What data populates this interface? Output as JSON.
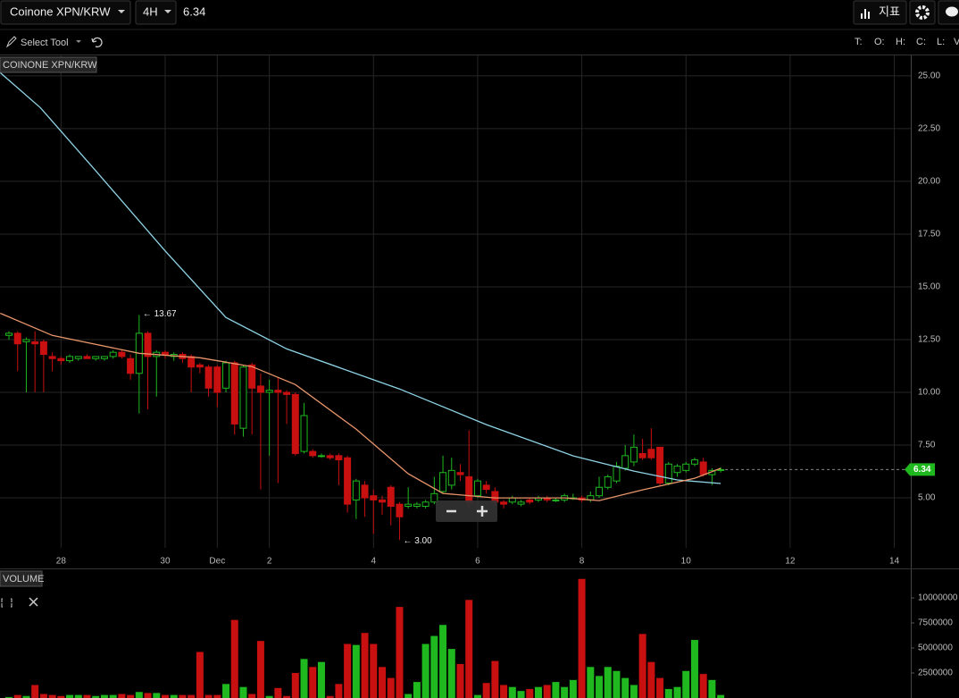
{
  "toolbar": {
    "symbol": "Coinone XPN/KRW",
    "interval": "4H",
    "price": "6.34",
    "indicators": "지표",
    "tool": "Select Tool",
    "ohlcv_labels": [
      "T:",
      "O:",
      "H:",
      "C:",
      "L:",
      "V"
    ]
  },
  "chart_data": {
    "type": "candlestick",
    "title": "COINONE XPN/KRW",
    "volume_title": "VOLUME",
    "up_color": "#1fb81f",
    "down_color": "#c81010",
    "grid": true,
    "x": [
      0,
      1,
      2,
      3,
      4,
      5,
      6,
      7,
      8,
      9,
      10,
      11,
      12,
      13,
      14,
      15,
      16,
      17,
      18,
      19,
      20,
      21,
      22,
      23,
      24,
      25,
      26,
      27,
      28,
      29,
      30,
      31,
      32,
      33,
      34,
      35,
      36,
      37,
      38,
      39,
      40,
      41,
      42,
      43,
      44,
      45,
      46,
      47,
      48,
      49,
      50,
      51,
      52,
      53,
      54,
      55,
      56,
      57,
      58,
      59,
      60,
      61,
      62,
      63,
      64,
      65,
      66,
      67,
      68,
      69,
      70,
      71,
      72,
      73,
      74,
      75,
      76,
      77,
      78,
      79,
      80,
      81,
      82
    ],
    "open": [
      12.7,
      12.8,
      12.4,
      12.4,
      12.4,
      11.7,
      11.6,
      11.5,
      11.6,
      11.7,
      11.6,
      11.6,
      11.7,
      11.9,
      11.6,
      10.9,
      12.8,
      11.7,
      11.9,
      11.7,
      11.8,
      11.7,
      11.3,
      11.2,
      11.2,
      10.2,
      11.4,
      8.3,
      11.3,
      10.3,
      10.0,
      10.1,
      10.0,
      9.9,
      7.2,
      7.2,
      7.0,
      7.0,
      7.0,
      6.9,
      4.9,
      5.6,
      5.1,
      4.9,
      5.5,
      4.7,
      4.6,
      4.6,
      4.6,
      4.8,
      5.3,
      5.6,
      6.2,
      6.0,
      5.1,
      5.6,
      5.3,
      4.8,
      4.8,
      4.7,
      4.9,
      4.9,
      5.0,
      4.9,
      4.9,
      5.0,
      5.0,
      4.9,
      5.1,
      5.5,
      5.8,
      6.4,
      6.7,
      7.1,
      7.3,
      7.4,
      5.7,
      6.2,
      6.3,
      6.6,
      6.7,
      6.1,
      6.3
    ],
    "high": [
      12.9,
      12.9,
      12.6,
      12.9,
      12.5,
      11.9,
      11.7,
      11.8,
      11.7,
      11.8,
      11.7,
      11.7,
      12.0,
      12.0,
      11.8,
      13.67,
      12.9,
      12.0,
      12.0,
      11.9,
      11.9,
      11.8,
      11.4,
      11.3,
      11.3,
      11.5,
      11.5,
      11.3,
      11.4,
      10.9,
      10.6,
      10.7,
      10.1,
      10.0,
      9.5,
      7.3,
      7.1,
      7.1,
      7.1,
      7.0,
      5.9,
      5.8,
      5.4,
      5.1,
      5.6,
      4.8,
      5.5,
      4.8,
      4.9,
      6.0,
      7.0,
      6.9,
      6.6,
      8.2,
      5.9,
      5.8,
      5.5,
      4.9,
      5.1,
      4.9,
      5.0,
      5.1,
      5.1,
      5.0,
      5.2,
      5.2,
      5.1,
      5.3,
      6.0,
      6.1,
      6.7,
      7.5,
      8.0,
      7.8,
      8.3,
      7.4,
      6.7,
      6.6,
      6.7,
      6.9,
      6.9,
      6.4,
      6.45
    ],
    "low": [
      12.5,
      11.0,
      10.0,
      10.0,
      10.0,
      11.0,
      11.3,
      11.4,
      11.5,
      11.6,
      11.5,
      11.5,
      11.6,
      11.6,
      10.6,
      9.0,
      9.2,
      9.8,
      11.6,
      11.5,
      11.4,
      10.0,
      10.9,
      9.8,
      9.3,
      10.0,
      8.0,
      7.9,
      8.0,
      5.4,
      7.0,
      5.7,
      8.5,
      7.0,
      7.1,
      6.9,
      6.9,
      6.8,
      5.6,
      4.3,
      4.0,
      4.1,
      3.3,
      4.2,
      3.7,
      3.0,
      4.5,
      4.5,
      4.5,
      4.7,
      5.2,
      5.4,
      5.8,
      4.5,
      5.0,
      5.2,
      4.6,
      4.5,
      4.7,
      4.6,
      4.7,
      4.8,
      4.8,
      4.8,
      4.8,
      4.9,
      4.8,
      4.8,
      5.0,
      5.4,
      5.7,
      6.3,
      6.5,
      6.8,
      6.8,
      5.6,
      5.6,
      6.0,
      6.2,
      6.5,
      6.0,
      5.6,
      6.2
    ],
    "close": [
      12.8,
      12.3,
      12.5,
      12.3,
      11.8,
      11.6,
      11.5,
      11.7,
      11.7,
      11.6,
      11.7,
      11.7,
      11.9,
      11.7,
      10.9,
      12.8,
      11.7,
      11.9,
      11.8,
      11.8,
      11.6,
      11.2,
      11.2,
      10.2,
      10.0,
      11.4,
      8.5,
      11.2,
      10.2,
      10.0,
      10.1,
      10.0,
      9.9,
      7.1,
      8.9,
      7.0,
      7.0,
      6.9,
      6.8,
      4.7,
      5.8,
      5.0,
      4.9,
      4.8,
      4.6,
      4.1,
      4.7,
      4.7,
      4.8,
      5.2,
      6.2,
      6.3,
      6.1,
      4.8,
      5.8,
      5.4,
      4.8,
      4.7,
      5.0,
      4.8,
      4.8,
      5.0,
      4.9,
      4.9,
      5.1,
      5.0,
      4.9,
      5.1,
      5.5,
      6.0,
      6.5,
      7.0,
      7.4,
      6.9,
      6.9,
      5.7,
      6.6,
      6.5,
      6.6,
      6.8,
      6.1,
      6.3,
      6.34
    ],
    "volume": [
      100000,
      300000,
      200000,
      1300000,
      400000,
      300000,
      200000,
      300000,
      300000,
      300000,
      200000,
      300000,
      300000,
      400000,
      300000,
      600000,
      500000,
      500000,
      300000,
      300000,
      300000,
      300000,
      4600000,
      300000,
      300000,
      1400000,
      7800000,
      1100000,
      400000,
      5700000,
      200000,
      1000000,
      200000,
      2500000,
      3900000,
      3100000,
      3600000,
      200000,
      1400000,
      5400000,
      5300000,
      6500000,
      5400000,
      3100000,
      2000000,
      9100000,
      400000,
      1600000,
      5400000,
      6200000,
      7300000,
      4900000,
      3400000,
      9800000,
      300000,
      1500000,
      3700000,
      1300000,
      1100000,
      700000,
      900000,
      1100000,
      1300000,
      1600000,
      1100000,
      1800000,
      11900000,
      3100000,
      2200000,
      3100000,
      2700000,
      2000000,
      1300000,
      6400000,
      3600000,
      2000000,
      900000,
      1100000,
      2700000,
      5800000,
      2400000,
      1800000,
      300000
    ],
    "moving_averages": [
      {
        "color": "#8fd3e6",
        "x": [
          -1,
          3.6,
          10,
          18,
          25,
          32,
          45,
          55,
          65,
          72,
          77,
          82
        ],
        "values": [
          25.15,
          23.5,
          20.5,
          16.7,
          13.55,
          12.06,
          10.16,
          8.47,
          6.99,
          6.27,
          5.85,
          5.68
        ]
      },
      {
        "color": "#e8956a",
        "x": [
          -1,
          5,
          15,
          22,
          28,
          33,
          40,
          46,
          50,
          56,
          64,
          68,
          73,
          79,
          82
        ],
        "values": [
          13.75,
          12.7,
          11.85,
          11.64,
          11.22,
          10.37,
          8.26,
          6.14,
          5.21,
          5.0,
          5.0,
          4.87,
          5.38,
          5.93,
          6.4
        ]
      }
    ],
    "max_label": {
      "value": 13.67,
      "label": "← 13.67"
    },
    "min_label": {
      "value": 3.0,
      "label": "← 3.00"
    },
    "last_price": {
      "value": 6.34,
      "label": "6.34"
    },
    "xlim": [
      -1.03,
      103.9
    ],
    "xticks": [
      {
        "value": 6,
        "label": "28"
      },
      {
        "value": 18,
        "label": "30"
      },
      {
        "value": 24,
        "label": "Dec"
      },
      {
        "value": 30,
        "label": "2"
      },
      {
        "value": 42,
        "label": "4"
      },
      {
        "value": 54,
        "label": "6"
      },
      {
        "value": 66,
        "label": "8"
      },
      {
        "value": 78,
        "label": "10"
      },
      {
        "value": 90,
        "label": "12"
      },
      {
        "value": 102,
        "label": "14"
      }
    ],
    "ylim": [
      2.63,
      25.97
    ],
    "yticks": [
      {
        "value": 5,
        "label": "5.00"
      },
      {
        "value": 7.5,
        "label": "7.50"
      },
      {
        "value": 10,
        "label": "10.00"
      },
      {
        "value": 12.5,
        "label": "12.50"
      },
      {
        "value": 15,
        "label": "15.00"
      },
      {
        "value": 17.5,
        "label": "17.50"
      },
      {
        "value": 20,
        "label": "20.00"
      },
      {
        "value": 22.5,
        "label": "22.50"
      },
      {
        "value": 25,
        "label": "25.00"
      }
    ],
    "volume_ylim": [
      0,
      12770000
    ],
    "volume_yticks": [
      2500000,
      5000000,
      7500000,
      10000000
    ]
  }
}
